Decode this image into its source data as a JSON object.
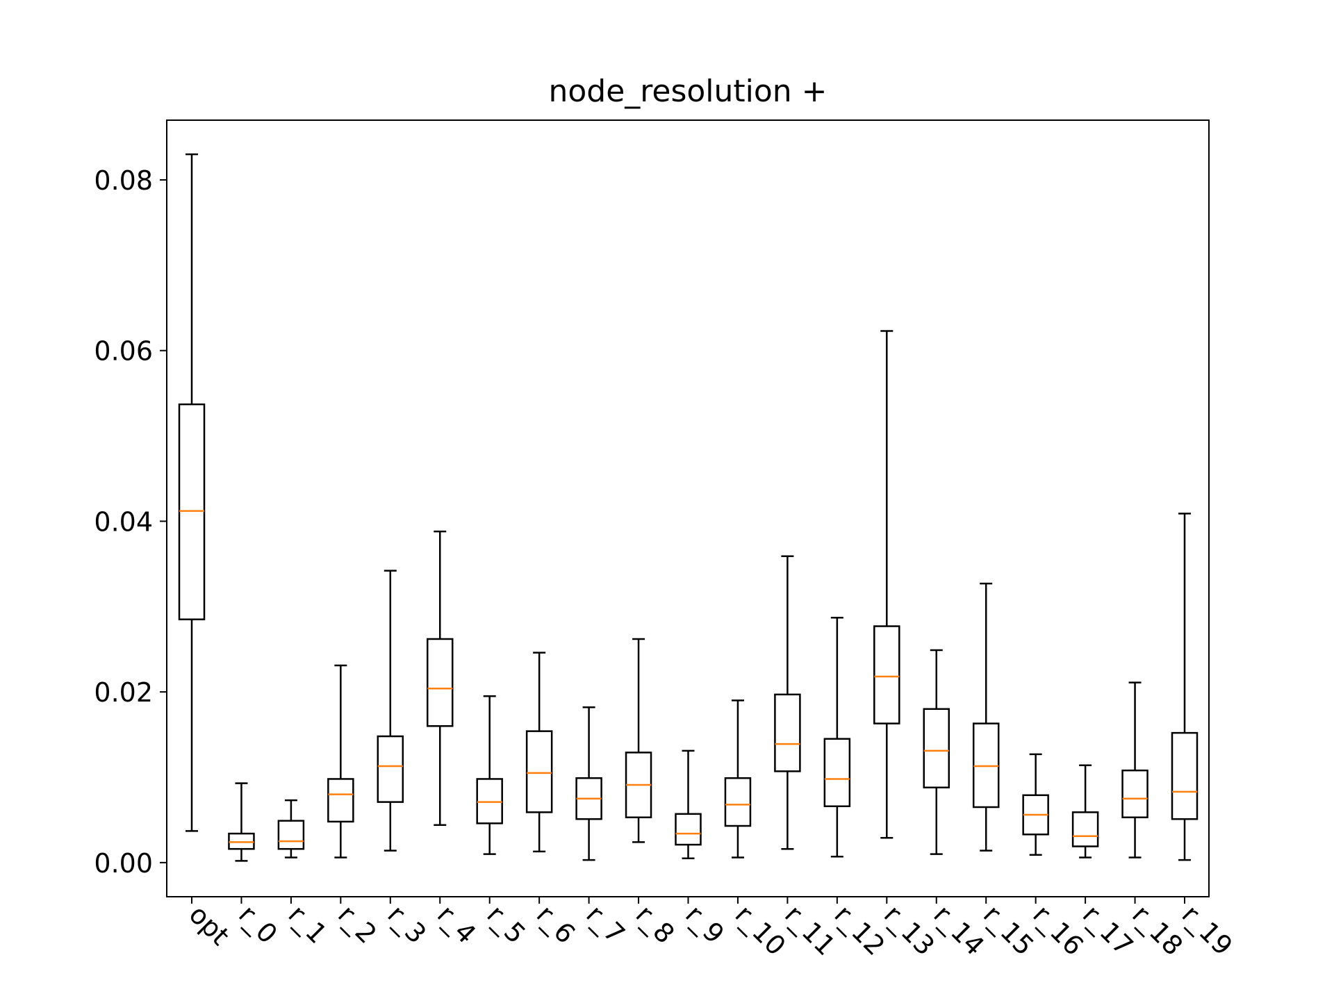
{
  "chart_data": {
    "type": "box",
    "title": "node_resolution +",
    "xlabel": "",
    "ylabel": "",
    "ylim": [
      -0.004,
      0.087
    ],
    "yticks": [
      0.0,
      0.02,
      0.04,
      0.06,
      0.08
    ],
    "ytick_labels": [
      "0.00",
      "0.02",
      "0.04",
      "0.06",
      "0.08"
    ],
    "categories": [
      "opt",
      "r_0",
      "r_1",
      "r_2",
      "r_3",
      "r_4",
      "r_5",
      "r_6",
      "r_7",
      "r_8",
      "r_9",
      "r_10",
      "r_11",
      "r_12",
      "r_13",
      "r_14",
      "r_15",
      "r_16",
      "r_17",
      "r_18",
      "r_19"
    ],
    "series": [
      {
        "boxes": [
          {
            "whislo": 0.0037,
            "q1": 0.0285,
            "med": 0.0412,
            "q3": 0.0537,
            "whishi": 0.083
          },
          {
            "whislo": 0.0002,
            "q1": 0.0016,
            "med": 0.0024,
            "q3": 0.0034,
            "whishi": 0.0093
          },
          {
            "whislo": 0.0006,
            "q1": 0.0016,
            "med": 0.0025,
            "q3": 0.0049,
            "whishi": 0.0073
          },
          {
            "whislo": 0.0006,
            "q1": 0.0048,
            "med": 0.008,
            "q3": 0.0098,
            "whishi": 0.0231
          },
          {
            "whislo": 0.0014,
            "q1": 0.0071,
            "med": 0.0113,
            "q3": 0.0148,
            "whishi": 0.0342
          },
          {
            "whislo": 0.0044,
            "q1": 0.016,
            "med": 0.0204,
            "q3": 0.0262,
            "whishi": 0.0388
          },
          {
            "whislo": 0.001,
            "q1": 0.0046,
            "med": 0.0071,
            "q3": 0.0098,
            "whishi": 0.0195
          },
          {
            "whislo": 0.0013,
            "q1": 0.0059,
            "med": 0.0105,
            "q3": 0.0154,
            "whishi": 0.0246
          },
          {
            "whislo": 0.0003,
            "q1": 0.0051,
            "med": 0.0075,
            "q3": 0.0099,
            "whishi": 0.0182
          },
          {
            "whislo": 0.0024,
            "q1": 0.0053,
            "med": 0.0091,
            "q3": 0.0129,
            "whishi": 0.0262
          },
          {
            "whislo": 0.0005,
            "q1": 0.0021,
            "med": 0.0034,
            "q3": 0.0057,
            "whishi": 0.0131
          },
          {
            "whislo": 0.0006,
            "q1": 0.0043,
            "med": 0.0068,
            "q3": 0.0099,
            "whishi": 0.019
          },
          {
            "whislo": 0.0016,
            "q1": 0.0107,
            "med": 0.0139,
            "q3": 0.0197,
            "whishi": 0.0359
          },
          {
            "whislo": 0.0007,
            "q1": 0.0066,
            "med": 0.0098,
            "q3": 0.0145,
            "whishi": 0.0287
          },
          {
            "whislo": 0.0029,
            "q1": 0.0163,
            "med": 0.0218,
            "q3": 0.0277,
            "whishi": 0.0623
          },
          {
            "whislo": 0.001,
            "q1": 0.0088,
            "med": 0.0131,
            "q3": 0.018,
            "whishi": 0.0249
          },
          {
            "whislo": 0.0014,
            "q1": 0.0065,
            "med": 0.0113,
            "q3": 0.0163,
            "whishi": 0.0327
          },
          {
            "whislo": 0.0009,
            "q1": 0.0033,
            "med": 0.0056,
            "q3": 0.0079,
            "whishi": 0.0127
          },
          {
            "whislo": 0.0006,
            "q1": 0.0019,
            "med": 0.0031,
            "q3": 0.0059,
            "whishi": 0.0114
          },
          {
            "whislo": 0.0006,
            "q1": 0.0053,
            "med": 0.0075,
            "q3": 0.0108,
            "whishi": 0.0211
          },
          {
            "whislo": 0.0003,
            "q1": 0.0051,
            "med": 0.0083,
            "q3": 0.0152,
            "whishi": 0.0409
          }
        ]
      }
    ],
    "grid": false,
    "colors": {
      "box_edge": "#000000",
      "median": "#ff7f0e",
      "whisker": "#000000",
      "axes": "#000000",
      "background": "#ffffff"
    }
  }
}
